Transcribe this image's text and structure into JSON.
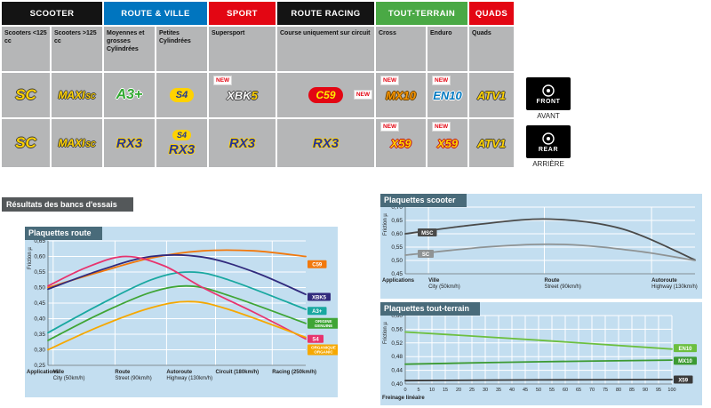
{
  "table": {
    "groups": [
      {
        "label": "SCOOTER",
        "color": "#141414",
        "span": 2
      },
      {
        "label": "ROUTE & VILLE",
        "color": "#0075bf",
        "span": 2
      },
      {
        "label": "SPORT",
        "color": "#e30613",
        "span": 1
      },
      {
        "label": "ROUTE RACING",
        "color": "#141414",
        "span": 1
      },
      {
        "label": "TOUT-TERRAIN",
        "color": "#4aa945",
        "span": 2
      },
      {
        "label": "QUADS",
        "color": "#e30613",
        "span": 1
      }
    ],
    "subheaders": [
      "Scooters <125 cc",
      "Scooters >125 cc",
      "Moyennes et grosses Cylindrées",
      "Petites Cylindrées",
      "Supersport",
      "Course uniquement sur circuit",
      "Cross",
      "Enduro",
      "Quads"
    ],
    "new_label": "NEW",
    "front": {
      "cells": [
        {
          "logos": [
            {
              "label": "SC",
              "style": "sc"
            }
          ]
        },
        {
          "logos": [
            {
              "label": "MAXI",
              "sub": "SC",
              "style": "maxi"
            }
          ]
        },
        {
          "logos": [
            {
              "label": "A3+",
              "style": "a3"
            }
          ]
        },
        {
          "logos": [
            {
              "label": "S4",
              "style": "s4"
            }
          ]
        },
        {
          "logos": [
            {
              "label": "XBK",
              "sub": "5",
              "style": "xbk"
            }
          ],
          "new": "tl"
        },
        {
          "logos": [
            {
              "label": "C59",
              "style": "c59"
            }
          ],
          "new": "right"
        },
        {
          "logos": [
            {
              "label": "MX10",
              "style": "mx10"
            }
          ],
          "new": "tl"
        },
        {
          "logos": [
            {
              "label": "EN10",
              "style": "en10"
            }
          ],
          "new": "tl"
        },
        {
          "logos": [
            {
              "label": "ATV1",
              "style": "atv"
            }
          ]
        }
      ]
    },
    "rear": {
      "cells": [
        {
          "logos": [
            {
              "label": "SC",
              "style": "sc"
            }
          ]
        },
        {
          "logos": [
            {
              "label": "MAXI",
              "sub": "SC",
              "style": "maxi"
            }
          ]
        },
        {
          "logos": [
            {
              "label": "RX3",
              "style": "rx3"
            }
          ]
        },
        {
          "logos": [
            {
              "label": "S4",
              "style": "s4sm"
            },
            {
              "label": "RX3",
              "style": "rx3"
            }
          ]
        },
        {
          "logos": [
            {
              "label": "RX3",
              "style": "rx3"
            }
          ]
        },
        {
          "logos": [
            {
              "label": "RX3",
              "style": "rx3"
            }
          ]
        },
        {
          "logos": [
            {
              "label": "X59",
              "style": "x59"
            }
          ],
          "new": "tl"
        },
        {
          "logos": [
            {
              "label": "X59",
              "style": "x59"
            }
          ],
          "new": "tl"
        },
        {
          "logos": [
            {
              "label": "ATV1",
              "style": "atv"
            }
          ]
        }
      ]
    }
  },
  "side_labels": {
    "front": {
      "title": "FRONT",
      "subtitle": "AVANT"
    },
    "rear": {
      "title": "REAR",
      "subtitle": "ARRIÈRE"
    }
  },
  "results_title": "Résultats des bancs d'essais",
  "chart_data": [
    {
      "id": "route",
      "type": "line",
      "title": "Plaquettes route",
      "ylabel": "Friction µ",
      "xlabel": "Applications",
      "ylim": [
        0.25,
        0.65
      ],
      "yticks": [
        0.65,
        0.6,
        0.55,
        0.5,
        0.45,
        0.4,
        0.35,
        0.3,
        0.25
      ],
      "x_categories": [
        {
          "pos": 0.02,
          "line1": "Ville",
          "line2": "City (50km/h)"
        },
        {
          "pos": 0.26,
          "line1": "Route",
          "line2": "Street (90km/h)"
        },
        {
          "pos": 0.46,
          "line1": "Autoroute",
          "line2": "Highway (130km/h)"
        },
        {
          "pos": 0.65,
          "line1": "Circuit (180km/h)",
          "line2": ""
        },
        {
          "pos": 0.87,
          "line1": "Racing (250km/h)",
          "line2": ""
        }
      ],
      "series": [
        {
          "name": "C59",
          "color": "#f2790d",
          "label": [
            "C59"
          ],
          "label_value": 0.575,
          "label_side": "right",
          "points": [
            [
              0,
              0.5
            ],
            [
              0.2,
              0.55
            ],
            [
              0.4,
              0.595
            ],
            [
              0.6,
              0.618
            ],
            [
              0.8,
              0.618
            ],
            [
              1,
              0.6
            ]
          ]
        },
        {
          "name": "XBK5",
          "color": "#312a7d",
          "label": [
            "XBK5"
          ],
          "label_value": 0.47,
          "label_side": "right",
          "points": [
            [
              0,
              0.495
            ],
            [
              0.2,
              0.555
            ],
            [
              0.4,
              0.6
            ],
            [
              0.6,
              0.598
            ],
            [
              0.8,
              0.55
            ],
            [
              1,
              0.478
            ]
          ]
        },
        {
          "name": "A3+",
          "color": "#19a8a0",
          "label": [
            "A3+"
          ],
          "label_value": 0.425,
          "label_side": "right",
          "points": [
            [
              0,
              0.355
            ],
            [
              0.2,
              0.445
            ],
            [
              0.4,
              0.525
            ],
            [
              0.55,
              0.55
            ],
            [
              0.7,
              0.525
            ],
            [
              1,
              0.43
            ]
          ]
        },
        {
          "name": "ORIGINE",
          "color": "#3fa535",
          "label": [
            "ORIGINE",
            "GENUINE"
          ],
          "label_value": 0.385,
          "label_side": "right",
          "points": [
            [
              0,
              0.33
            ],
            [
              0.2,
              0.415
            ],
            [
              0.4,
              0.485
            ],
            [
              0.55,
              0.505
            ],
            [
              0.7,
              0.475
            ],
            [
              1,
              0.385
            ]
          ]
        },
        {
          "name": "S4",
          "color": "#e8336e",
          "label": [
            "S4"
          ],
          "label_value": 0.335,
          "label_side": "right",
          "points": [
            [
              0,
              0.505
            ],
            [
              0.15,
              0.565
            ],
            [
              0.3,
              0.6
            ],
            [
              0.45,
              0.57
            ],
            [
              0.6,
              0.5
            ],
            [
              0.8,
              0.42
            ],
            [
              1,
              0.335
            ]
          ]
        },
        {
          "name": "ORGANIQUE",
          "color": "#f6a800",
          "label": [
            "ORGANIQUE",
            "ORGANIC"
          ],
          "label_value": 0.3,
          "label_side": "right",
          "points": [
            [
              0,
              0.3
            ],
            [
              0.2,
              0.375
            ],
            [
              0.4,
              0.435
            ],
            [
              0.55,
              0.455
            ],
            [
              0.7,
              0.43
            ],
            [
              1,
              0.34
            ]
          ]
        }
      ]
    },
    {
      "id": "scooter",
      "type": "line",
      "title": "Plaquettes scooter",
      "ylabel": "Friction µ",
      "xlabel": "Applications",
      "ylim": [
        0.45,
        0.7
      ],
      "yticks": [
        0.7,
        0.65,
        0.6,
        0.55,
        0.5,
        0.45
      ],
      "x_categories": [
        {
          "pos": 0.08,
          "line1": "Ville",
          "line2": "City (50km/h)"
        },
        {
          "pos": 0.48,
          "line1": "Route",
          "line2": "Street (90km/h)"
        },
        {
          "pos": 0.85,
          "line1": "Autoroute",
          "line2": "Highway (130km/h)"
        }
      ],
      "series": [
        {
          "name": "MSC",
          "color": "#4a4a49",
          "label": [
            "MSC"
          ],
          "label_value": 0.605,
          "label_side": "left",
          "points": [
            [
              0,
              0.6
            ],
            [
              0.25,
              0.635
            ],
            [
              0.5,
              0.655
            ],
            [
              0.75,
              0.618
            ],
            [
              1,
              0.502
            ]
          ]
        },
        {
          "name": "SC",
          "color": "#8f9394",
          "label": [
            "SC"
          ],
          "label_value": 0.525,
          "label_side": "left",
          "points": [
            [
              0,
              0.52
            ],
            [
              0.3,
              0.552
            ],
            [
              0.55,
              0.56
            ],
            [
              0.8,
              0.535
            ],
            [
              1,
              0.5
            ]
          ]
        }
      ]
    },
    {
      "id": "tt",
      "type": "line",
      "title": "Plaquettes tout-terrain",
      "ylabel": "Friction µ",
      "xlabel": "Freinage linéaire",
      "ylim": [
        0.4,
        0.6
      ],
      "yticks": [
        0.6,
        0.56,
        0.52,
        0.48,
        0.44,
        0.4
      ],
      "xticks": [
        0,
        5,
        10,
        15,
        20,
        25,
        30,
        35,
        40,
        45,
        50,
        55,
        60,
        65,
        70,
        75,
        80,
        85,
        90,
        95,
        100
      ],
      "series": [
        {
          "name": "EN10",
          "color": "#6cbf3f",
          "label": [
            "EN10"
          ],
          "label_value": 0.505,
          "label_side": "right",
          "points": [
            [
              0,
              0.552
            ],
            [
              0.5,
              0.528
            ],
            [
              1,
              0.502
            ]
          ]
        },
        {
          "name": "MX10",
          "color": "#3c9a32",
          "label": [
            "MX10"
          ],
          "label_value": 0.468,
          "label_side": "right",
          "points": [
            [
              0,
              0.458
            ],
            [
              0.5,
              0.465
            ],
            [
              1,
              0.47
            ]
          ]
        },
        {
          "name": "X59",
          "color": "#3a3a3a",
          "label": [
            "X59"
          ],
          "label_value": 0.413,
          "label_side": "right",
          "points": [
            [
              0,
              0.41
            ],
            [
              0.5,
              0.412
            ],
            [
              1,
              0.413
            ]
          ]
        }
      ]
    }
  ]
}
